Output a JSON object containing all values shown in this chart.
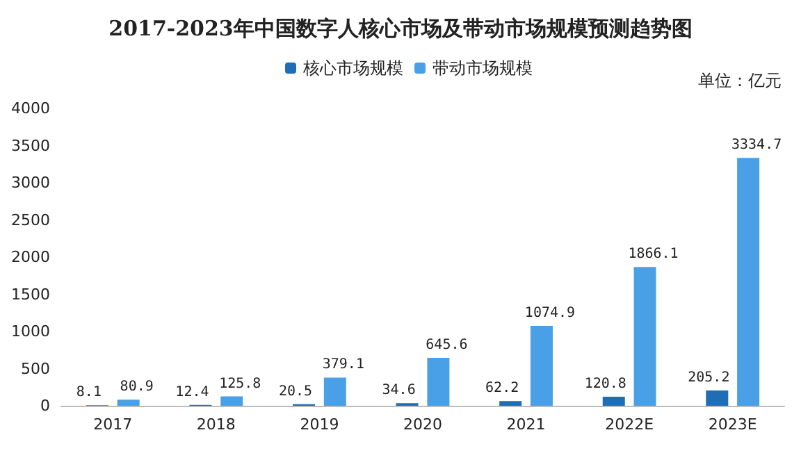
{
  "chart_data": {
    "type": "bar",
    "title": "2017-2023年中国数字人核心市场及带动市场规模预测趋势图",
    "annotations": [
      "单位：亿元"
    ],
    "categories": [
      "2017",
      "2018",
      "2019",
      "2020",
      "2021",
      "2022E",
      "2023E"
    ],
    "series": [
      {
        "name": "核心市场规模",
        "color": "#1f6db4",
        "values": [
          8.1,
          12.4,
          20.5,
          34.6,
          62.2,
          120.8,
          205.2
        ]
      },
      {
        "name": "带动市场规模",
        "color": "#4aa0e6",
        "values": [
          80.9,
          125.8,
          379.1,
          645.6,
          1074.9,
          1866.1,
          3334.7
        ]
      }
    ],
    "ylim": [
      0,
      4000
    ],
    "yticks": [
      0,
      500,
      1000,
      1500,
      2000,
      2500,
      3000,
      3500,
      4000
    ],
    "data_labels": true,
    "grid": false,
    "legend": "top"
  }
}
